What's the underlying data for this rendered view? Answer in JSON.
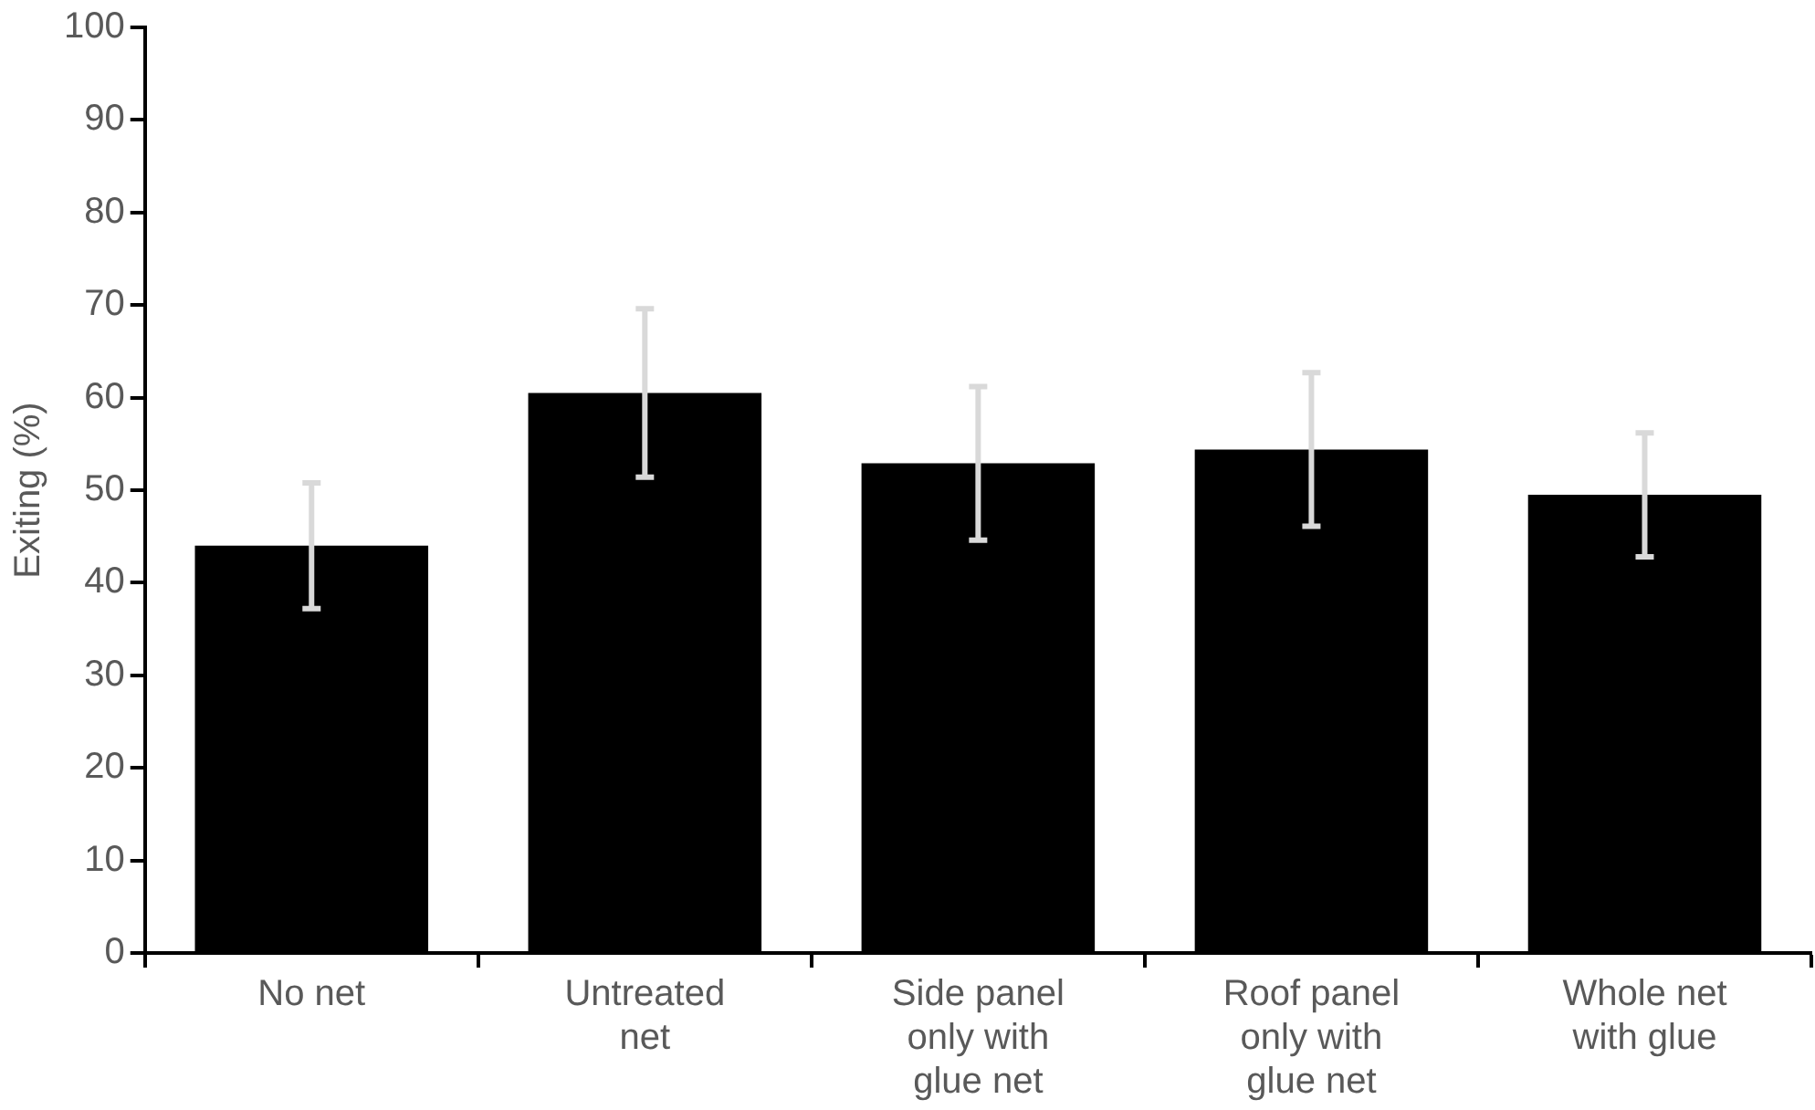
{
  "chart_data": {
    "type": "bar",
    "ylabel": "Exiting (%)",
    "categories": [
      "No net",
      "Untreated net",
      "Side panel only with glue net",
      "Roof panel only with glue net",
      "Whole net with glue"
    ],
    "values": [
      44,
      60.5,
      52.9,
      54.4,
      49.5
    ],
    "errors": [
      6.8,
      9.1,
      8.3,
      8.3,
      6.7
    ],
    "color": "#000000",
    "ylim": [
      0,
      100
    ],
    "yticks": [
      0,
      10,
      20,
      30,
      40,
      50,
      60,
      70,
      80,
      90,
      100
    ],
    "grid": false,
    "legend": false
  }
}
